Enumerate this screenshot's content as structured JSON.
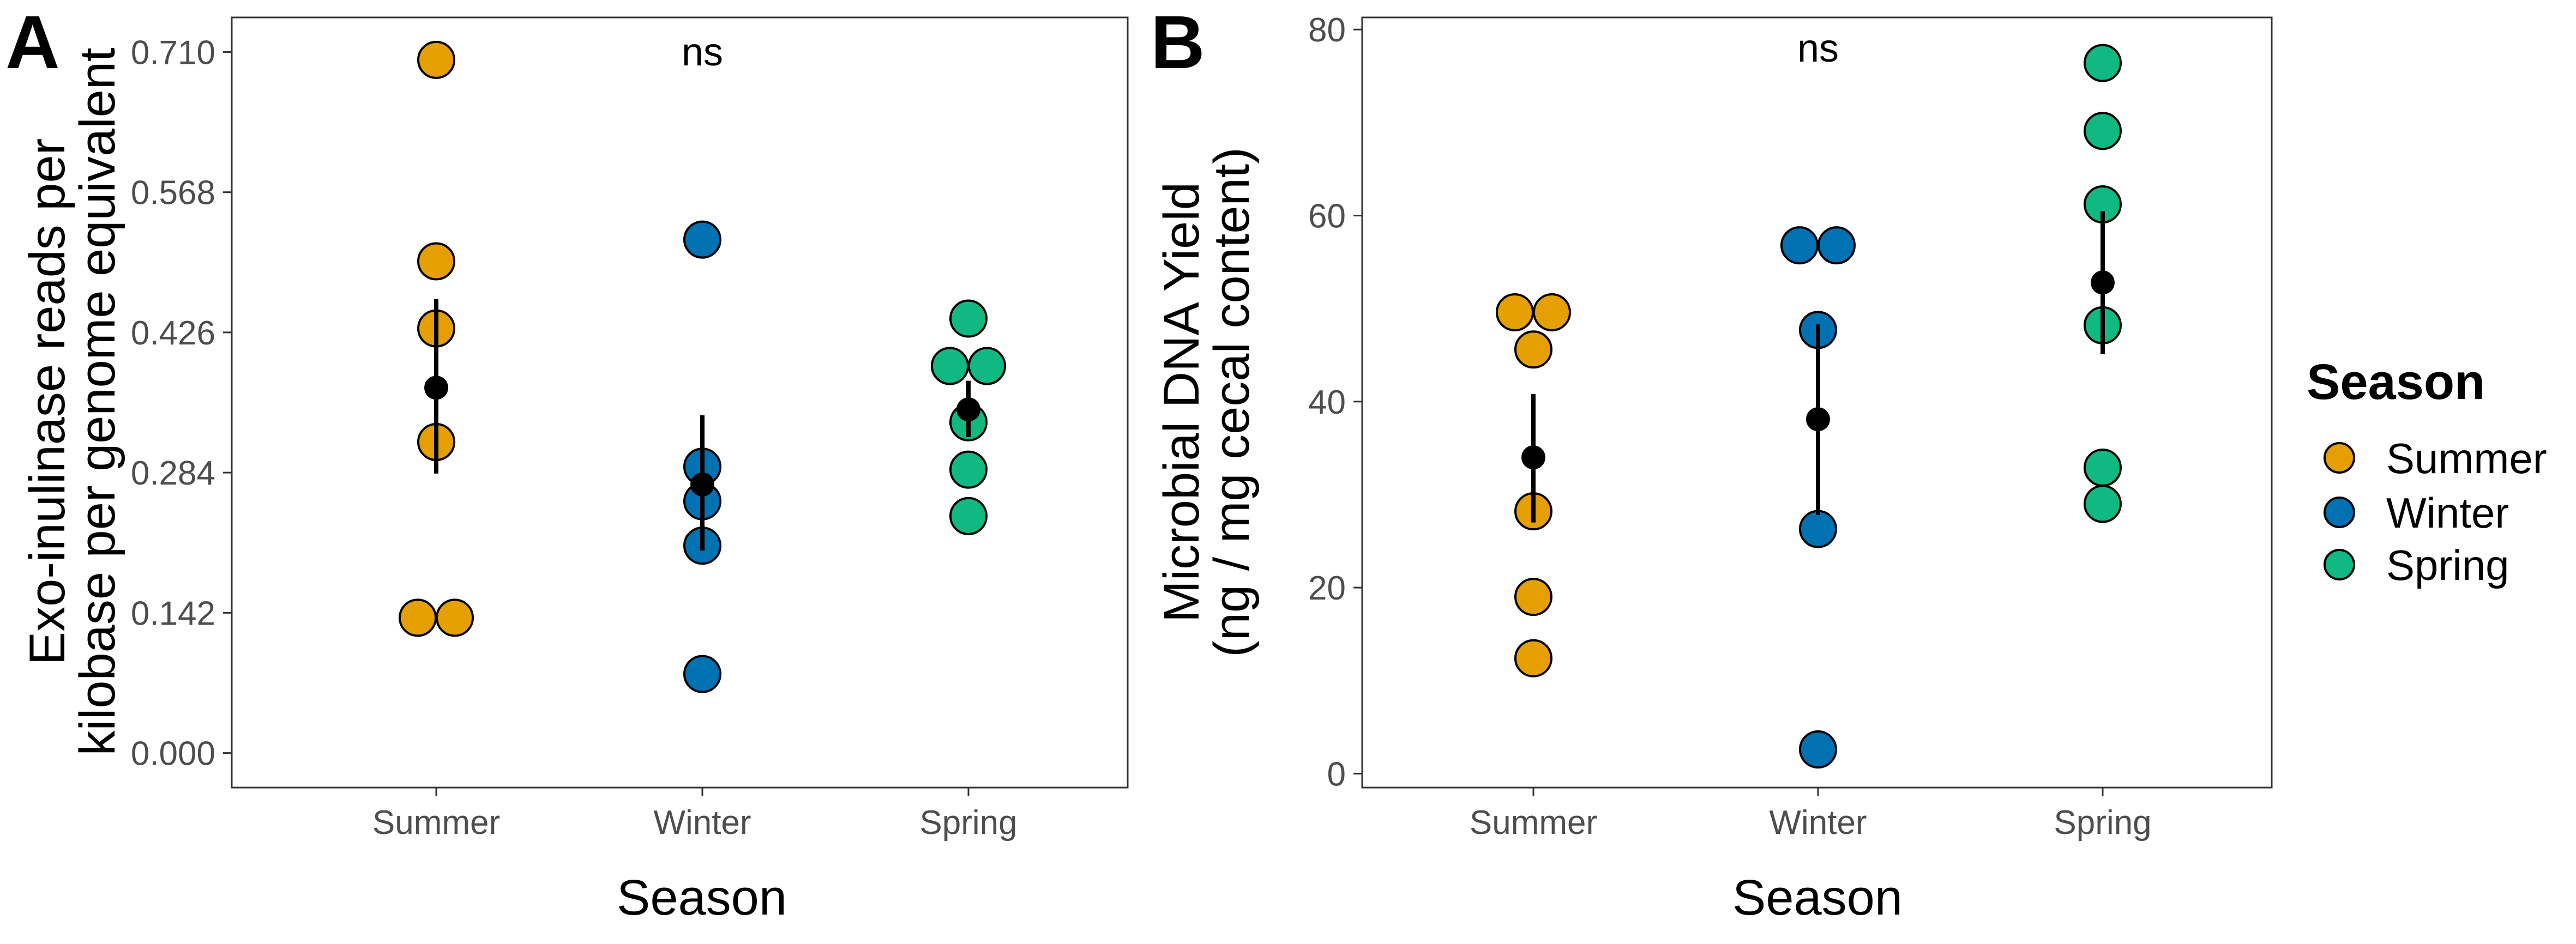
{
  "colors": {
    "Summer": "#E69F00",
    "Winter": "#0072B2",
    "Spring": "#10B882"
  },
  "legend": {
    "title": "Season",
    "items": [
      "Summer",
      "Winter",
      "Spring"
    ],
    "placement": "right"
  },
  "chart_data": [
    {
      "type": "scatter",
      "panel": "A",
      "xlabel": "Season",
      "ylabel": [
        "Exo-inulinase reads per",
        "kilobase per genome equivalent"
      ],
      "categories": [
        "Summer",
        "Winter",
        "Spring"
      ],
      "ylim": [
        -0.035,
        0.745
      ],
      "yticks": [
        "0.000",
        "0.142",
        "0.284",
        "0.426",
        "0.568",
        "0.710"
      ],
      "annotation": "ns",
      "grid": false,
      "points": [
        {
          "season": "Summer",
          "y": 0.702,
          "offset": 0
        },
        {
          "season": "Summer",
          "y": 0.498,
          "offset": 0
        },
        {
          "season": "Summer",
          "y": 0.43,
          "offset": 0
        },
        {
          "season": "Summer",
          "y": 0.315,
          "offset": 0
        },
        {
          "season": "Summer",
          "y": 0.137,
          "offset": -0.34
        },
        {
          "season": "Summer",
          "y": 0.137,
          "offset": 0.34
        },
        {
          "season": "Winter",
          "y": 0.52,
          "offset": 0
        },
        {
          "season": "Winter",
          "y": 0.29,
          "offset": 0
        },
        {
          "season": "Winter",
          "y": 0.255,
          "offset": 0
        },
        {
          "season": "Winter",
          "y": 0.21,
          "offset": 0
        },
        {
          "season": "Winter",
          "y": 0.08,
          "offset": 0
        },
        {
          "season": "Spring",
          "y": 0.44,
          "offset": 0
        },
        {
          "season": "Spring",
          "y": 0.392,
          "offset": -0.34
        },
        {
          "season": "Spring",
          "y": 0.392,
          "offset": 0.34
        },
        {
          "season": "Spring",
          "y": 0.335,
          "offset": 0
        },
        {
          "season": "Spring",
          "y": 0.287,
          "offset": 0
        },
        {
          "season": "Spring",
          "y": 0.24,
          "offset": 0
        }
      ],
      "summary": [
        {
          "season": "Summer",
          "mean": 0.37,
          "low": 0.283,
          "high": 0.46
        },
        {
          "season": "Winter",
          "mean": 0.272,
          "low": 0.205,
          "high": 0.342
        },
        {
          "season": "Spring",
          "mean": 0.348,
          "low": 0.32,
          "high": 0.377
        }
      ]
    },
    {
      "type": "scatter",
      "panel": "B",
      "xlabel": "Season",
      "ylabel": [
        "Microbial DNA Yield",
        "(ng / mg cecal content)"
      ],
      "categories": [
        "Summer",
        "Winter",
        "Spring"
      ],
      "ylim": [
        -1.5,
        81.3
      ],
      "yticks": [
        "0",
        "20",
        "40",
        "60",
        "80"
      ],
      "annotation": "ns",
      "grid": false,
      "points": [
        {
          "season": "Summer",
          "y": 49.6,
          "offset": -0.34
        },
        {
          "season": "Summer",
          "y": 49.6,
          "offset": 0.34
        },
        {
          "season": "Summer",
          "y": 45.6,
          "offset": 0
        },
        {
          "season": "Summer",
          "y": 28.2,
          "offset": 0
        },
        {
          "season": "Summer",
          "y": 19.0,
          "offset": 0
        },
        {
          "season": "Summer",
          "y": 12.4,
          "offset": 0
        },
        {
          "season": "Winter",
          "y": 56.8,
          "offset": -0.34
        },
        {
          "season": "Winter",
          "y": 56.8,
          "offset": 0.34
        },
        {
          "season": "Winter",
          "y": 47.7,
          "offset": 0
        },
        {
          "season": "Winter",
          "y": 26.3,
          "offset": 0
        },
        {
          "season": "Winter",
          "y": 2.6,
          "offset": 0
        },
        {
          "season": "Spring",
          "y": 76.4,
          "offset": 0
        },
        {
          "season": "Spring",
          "y": 69.1,
          "offset": 0
        },
        {
          "season": "Spring",
          "y": 61.2,
          "offset": 0
        },
        {
          "season": "Spring",
          "y": 48.2,
          "offset": 0
        },
        {
          "season": "Spring",
          "y": 32.9,
          "offset": 0
        },
        {
          "season": "Spring",
          "y": 29.0,
          "offset": 0
        }
      ],
      "summary": [
        {
          "season": "Summer",
          "mean": 34.0,
          "low": 27.0,
          "high": 40.8
        },
        {
          "season": "Winter",
          "mean": 38.1,
          "low": 27.8,
          "high": 48.3
        },
        {
          "season": "Spring",
          "mean": 52.8,
          "low": 45.1,
          "high": 60.5
        }
      ]
    }
  ]
}
